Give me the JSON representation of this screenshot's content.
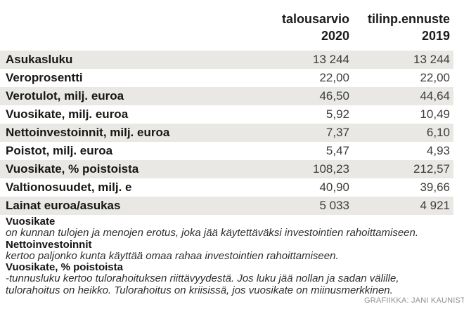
{
  "chart_data": {
    "type": "table",
    "columns": [
      "",
      "talousarvio 2020",
      "tilinp.ennuste 2019"
    ],
    "rows": [
      [
        "Asukasluku",
        "13 244",
        "13 244"
      ],
      [
        "Veroprosentti",
        "22,00",
        "22,00"
      ],
      [
        "Verotulot, milj. euroa",
        "46,50",
        "44,64"
      ],
      [
        "Vuosikate, milj. euroa",
        "5,92",
        "10,49"
      ],
      [
        "Nettoinvestoinnit, milj. euroa",
        "7,37",
        "6,10"
      ],
      [
        "Poistot, milj. euroa",
        "5,47",
        "4,93"
      ],
      [
        "Vuosikate, % poistoista",
        "108,23",
        "212,57"
      ],
      [
        "Valtionosuudet, milj. e",
        "40,90",
        "39,66"
      ],
      [
        "Lainat euroa/asukas",
        "5 033",
        "4 921"
      ]
    ],
    "layout": {
      "zebra_striping": true,
      "striped_rows": "odd",
      "value_alignment": "right"
    }
  },
  "header": {
    "col1_line1": "talousarvio",
    "col1_line2": "2020",
    "col2_line1": "tilinp.ennuste",
    "col2_line2": "2019"
  },
  "notes": [
    {
      "term": "Vuosikate",
      "definition": "on kunnan tulojen ja menojen erotus, joka jää käytettäväksi investointien rahoittamiseen."
    },
    {
      "term": "Nettoinvestoinnit",
      "definition": "kertoo paljonko kunta käyttää omaa rahaa investointien rahoittamiseen."
    },
    {
      "term": "Vuosikate, % poistoista",
      "definition": "-tunnusluku kertoo tulorahoituksen riittävyydestä. Jos luku jää nollan ja sadan välille, tulorahoitus on heikko. Tulorahoitus on kriisissä, jos vuosikate on miinusmerkkinen."
    }
  ],
  "credit": "GRAFIIKKA: JANI KAUNIST",
  "colors": {
    "background": "#ffffff",
    "row_shade": "#e9e8e4",
    "label_text": "#161614",
    "value_text": "#3d3d3b",
    "credit_text": "#8f8f8f"
  }
}
